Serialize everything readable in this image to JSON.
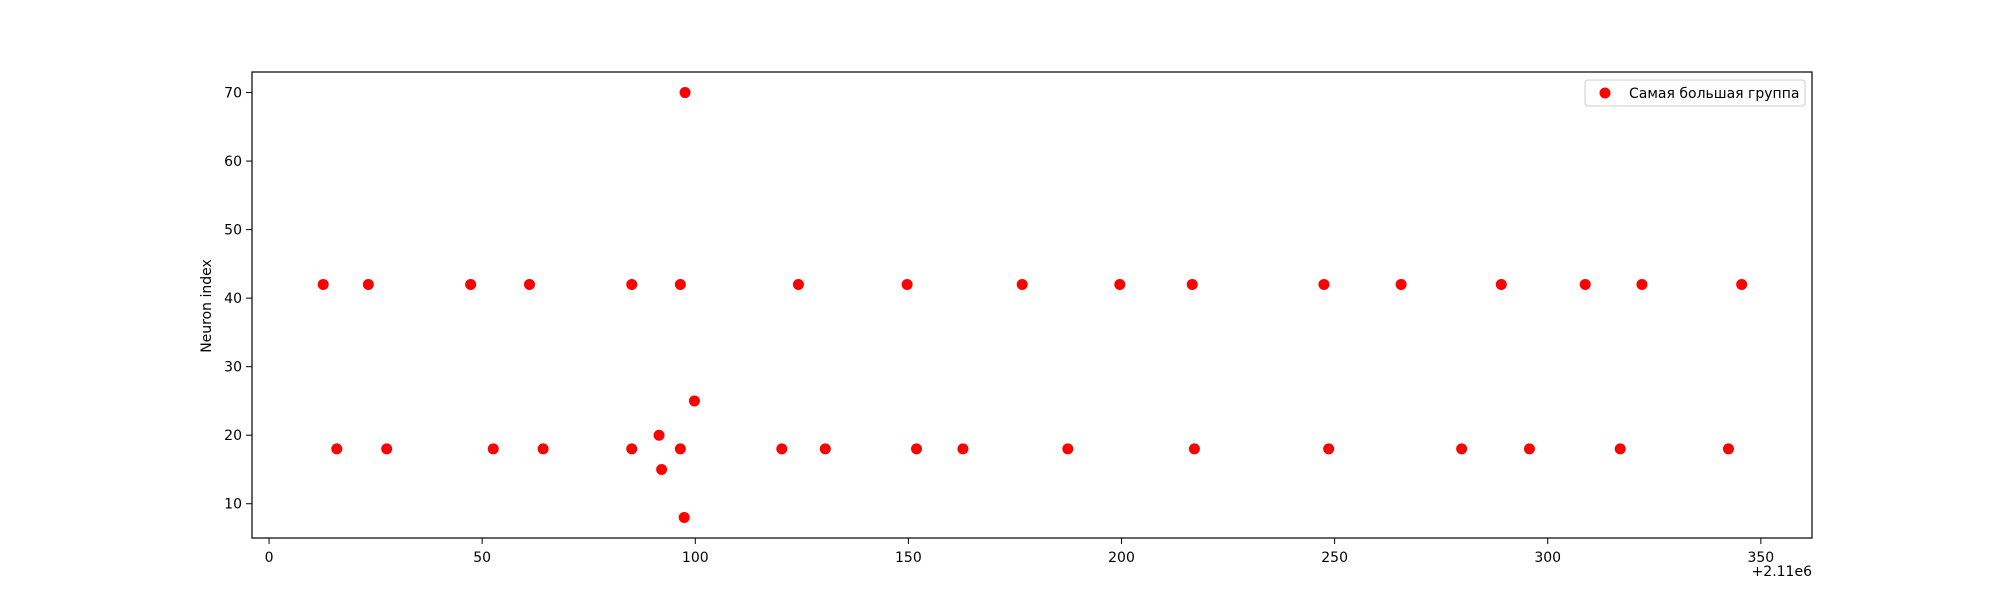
{
  "chart_data": {
    "type": "scatter",
    "title": "",
    "xlabel": "",
    "ylabel": "Neuron index",
    "x_offset_label": "+2.11e6",
    "xlim": [
      -4,
      362
    ],
    "ylim": [
      5,
      73
    ],
    "x_ticks": [
      0,
      50,
      100,
      150,
      200,
      250,
      300,
      350
    ],
    "x_tick_labels": [
      "0",
      "50",
      "100",
      "150",
      "200",
      "250",
      "300",
      "350"
    ],
    "y_ticks": [
      10,
      20,
      30,
      40,
      50,
      60,
      70
    ],
    "y_tick_labels": [
      "10",
      "20",
      "30",
      "40",
      "50",
      "60",
      "70"
    ],
    "grid": false,
    "legend_position": "top-right",
    "series": [
      {
        "name": "Самая большая группа",
        "color": "#ff0000",
        "marker": "circle",
        "points": [
          {
            "x": 12.7,
            "y": 42
          },
          {
            "x": 23.3,
            "y": 42
          },
          {
            "x": 47.3,
            "y": 42
          },
          {
            "x": 61.1,
            "y": 42
          },
          {
            "x": 85.1,
            "y": 42
          },
          {
            "x": 96.5,
            "y": 42
          },
          {
            "x": 124.2,
            "y": 42
          },
          {
            "x": 149.7,
            "y": 42
          },
          {
            "x": 176.7,
            "y": 42
          },
          {
            "x": 199.6,
            "y": 42
          },
          {
            "x": 216.6,
            "y": 42
          },
          {
            "x": 247.5,
            "y": 42
          },
          {
            "x": 265.6,
            "y": 42
          },
          {
            "x": 289.1,
            "y": 42
          },
          {
            "x": 308.8,
            "y": 42
          },
          {
            "x": 322.1,
            "y": 42
          },
          {
            "x": 345.5,
            "y": 42
          },
          {
            "x": 15.9,
            "y": 18
          },
          {
            "x": 27.6,
            "y": 18
          },
          {
            "x": 52.6,
            "y": 18
          },
          {
            "x": 64.3,
            "y": 18
          },
          {
            "x": 85.1,
            "y": 18
          },
          {
            "x": 96.5,
            "y": 18
          },
          {
            "x": 120.3,
            "y": 18
          },
          {
            "x": 130.5,
            "y": 18
          },
          {
            "x": 151.9,
            "y": 18
          },
          {
            "x": 162.8,
            "y": 18
          },
          {
            "x": 187.4,
            "y": 18
          },
          {
            "x": 217.1,
            "y": 18
          },
          {
            "x": 248.6,
            "y": 18
          },
          {
            "x": 279.8,
            "y": 18
          },
          {
            "x": 295.7,
            "y": 18
          },
          {
            "x": 317.0,
            "y": 18
          },
          {
            "x": 342.4,
            "y": 18
          },
          {
            "x": 91.5,
            "y": 20
          },
          {
            "x": 92.1,
            "y": 15
          },
          {
            "x": 97.4,
            "y": 8
          },
          {
            "x": 97.6,
            "y": 70
          },
          {
            "x": 99.8,
            "y": 25
          }
        ]
      }
    ]
  }
}
